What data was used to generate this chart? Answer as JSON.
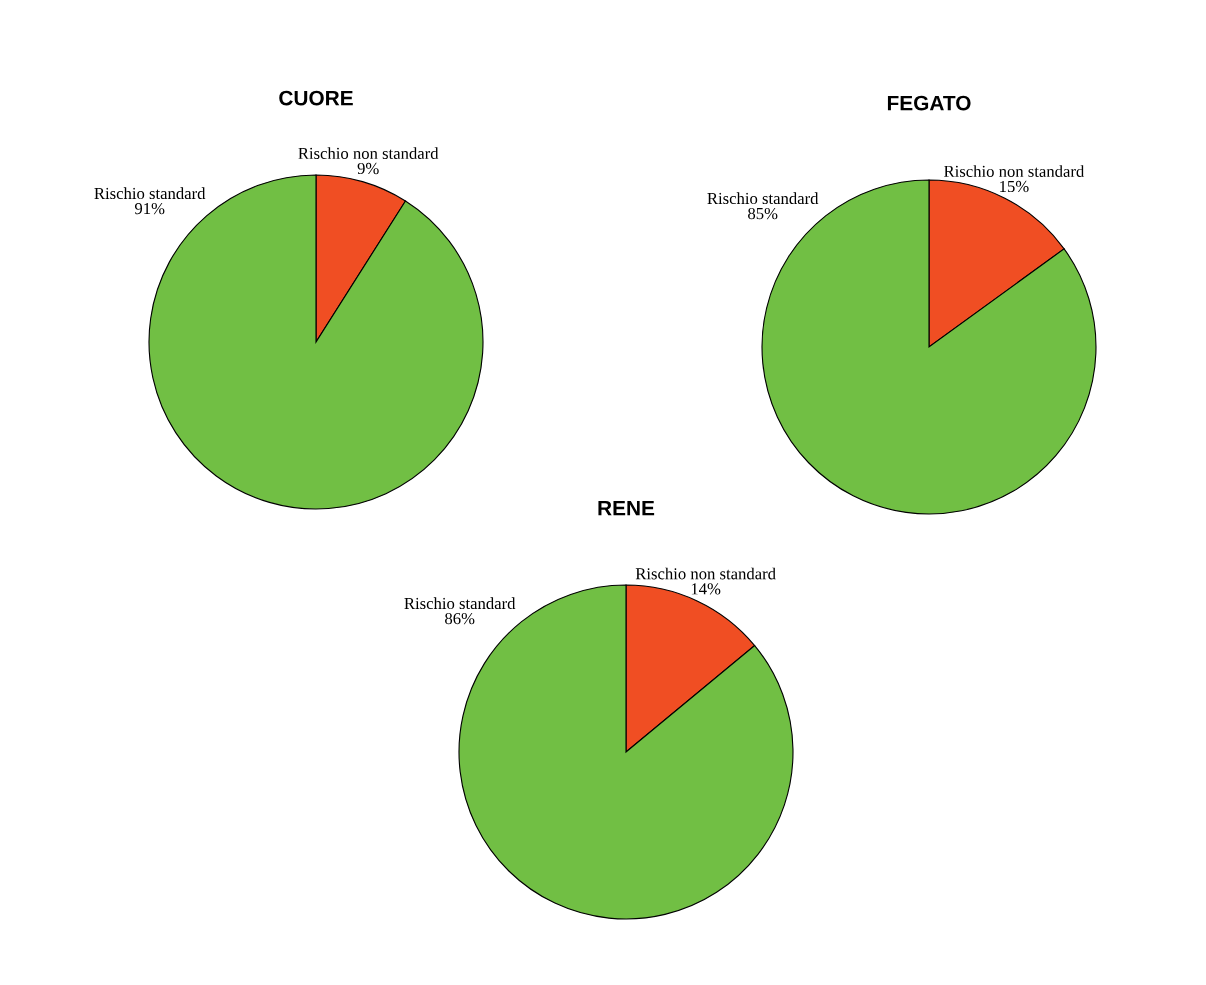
{
  "chart_data": [
    {
      "type": "pie",
      "title": "CUORE",
      "categories": [
        "Rischio non standard",
        "Rischio standard"
      ],
      "values": [
        9,
        91
      ],
      "colors": [
        "#f04e23",
        "#71bf44"
      ],
      "value_labels": [
        "9%",
        "91%"
      ]
    },
    {
      "type": "pie",
      "title": "FEGATO",
      "categories": [
        "Rischio non standard",
        "Rischio standard"
      ],
      "values": [
        15,
        85
      ],
      "colors": [
        "#f04e23",
        "#71bf44"
      ],
      "value_labels": [
        "15%",
        "85%"
      ]
    },
    {
      "type": "pie",
      "title": "RENE",
      "categories": [
        "Rischio non standard",
        "Rischio standard"
      ],
      "values": [
        14,
        86
      ],
      "colors": [
        "#f04e23",
        "#71bf44"
      ],
      "value_labels": [
        "14%",
        "86%"
      ]
    }
  ]
}
